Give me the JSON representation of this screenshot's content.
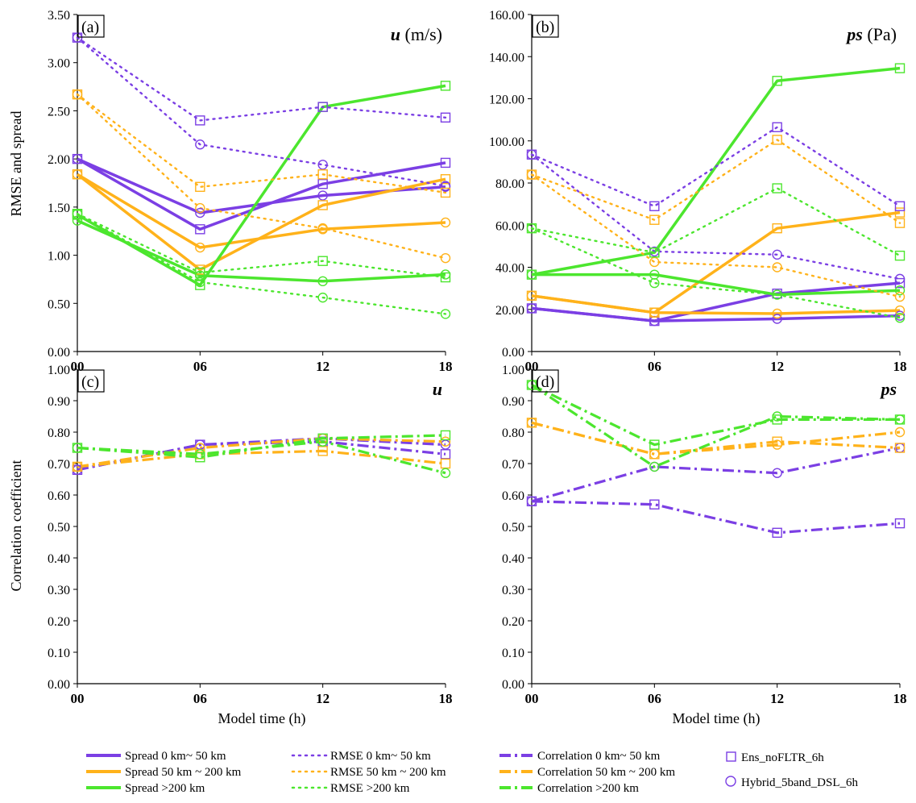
{
  "colors": {
    "purple": "#7B3FE4",
    "orange": "#FFB21A",
    "green": "#4CE62E",
    "axis": "#000000"
  },
  "axis_labels": {
    "top_ylabel": "RMSE and spread",
    "bottom_ylabel": "Correlation coefficient",
    "xlabel": "Model time (h)"
  },
  "x_ticks": [
    "00",
    "06",
    "12",
    "18"
  ],
  "legend": {
    "spread": [
      "Spread 0 km~ 50 km",
      "Spread 50 km ~ 200 km",
      "Spread >200 km"
    ],
    "rmse": [
      "RMSE 0 km~ 50 km",
      "RMSE 50 km ~ 200 km",
      "RMSE >200 km"
    ],
    "corr": [
      "Correlation 0 km~ 50 km",
      "Correlation 50 km ~ 200 km",
      "Correlation >200 km"
    ],
    "markers": [
      "Ens_noFLTR_6h",
      "Hybrid_5band_DSL_6h"
    ]
  },
  "chart_data": [
    {
      "type": "line",
      "panel": "(a)",
      "variable": "u",
      "unit": "(m/s)",
      "x": [
        "00",
        "06",
        "12",
        "18"
      ],
      "ylim": [
        0,
        3.5
      ],
      "yticks": [
        "0.00",
        "0.50",
        "1.00",
        "1.50",
        "2.00",
        "2.50",
        "3.00",
        "3.50"
      ],
      "series": [
        {
          "name": "Spread 0 km~ 50 km",
          "experiment": "Ens_noFLTR_6h",
          "values": [
            2.0,
            1.27,
            1.74,
            1.96
          ]
        },
        {
          "name": "Spread 0 km~ 50 km",
          "experiment": "Hybrid_5band_DSL_6h",
          "values": [
            2.0,
            1.44,
            1.62,
            1.71
          ]
        },
        {
          "name": "Spread 50 km ~ 200 km",
          "experiment": "Ens_noFLTR_6h",
          "values": [
            1.84,
            0.85,
            1.52,
            1.79
          ]
        },
        {
          "name": "Spread 50 km ~ 200 km",
          "experiment": "Hybrid_5band_DSL_6h",
          "values": [
            1.84,
            1.08,
            1.27,
            1.34
          ]
        },
        {
          "name": "Spread >200 km",
          "experiment": "Ens_noFLTR_6h",
          "values": [
            1.42,
            0.69,
            2.54,
            2.76
          ]
        },
        {
          "name": "Spread >200 km",
          "experiment": "Hybrid_5band_DSL_6h",
          "values": [
            1.36,
            0.79,
            0.73,
            0.8
          ]
        },
        {
          "name": "RMSE 0 km~ 50 km",
          "experiment": "Ens_noFLTR_6h",
          "values": [
            3.26,
            2.4,
            2.54,
            2.43
          ]
        },
        {
          "name": "RMSE 0 km~ 50 km",
          "experiment": "Hybrid_5band_DSL_6h",
          "values": [
            3.26,
            2.15,
            1.94,
            1.72
          ]
        },
        {
          "name": "RMSE 50 km ~ 200 km",
          "experiment": "Ens_noFLTR_6h",
          "values": [
            2.67,
            1.71,
            1.84,
            1.65
          ]
        },
        {
          "name": "RMSE 50 km ~ 200 km",
          "experiment": "Hybrid_5band_DSL_6h",
          "values": [
            2.67,
            1.49,
            1.28,
            0.97
          ]
        },
        {
          "name": "RMSE >200 km",
          "experiment": "Ens_noFLTR_6h",
          "values": [
            1.43,
            0.82,
            0.94,
            0.77
          ]
        },
        {
          "name": "RMSE >200 km",
          "experiment": "Hybrid_5band_DSL_6h",
          "values": [
            1.43,
            0.72,
            0.56,
            0.39
          ]
        }
      ]
    },
    {
      "type": "line",
      "panel": "(b)",
      "variable": "ps",
      "unit": "(Pa)",
      "x": [
        "00",
        "06",
        "12",
        "18"
      ],
      "ylim": [
        0,
        160
      ],
      "yticks": [
        "0.00",
        "20.00",
        "40.00",
        "60.00",
        "80.00",
        "100.00",
        "120.00",
        "140.00",
        "160.00"
      ],
      "series": [
        {
          "name": "Spread 0 km~ 50 km",
          "experiment": "Ens_noFLTR_6h",
          "values": [
            20.5,
            14.5,
            27.5,
            32.5
          ]
        },
        {
          "name": "Spread 0 km~ 50 km",
          "experiment": "Hybrid_5band_DSL_6h",
          "values": [
            20.5,
            14.5,
            15.5,
            17
          ]
        },
        {
          "name": "Spread 50 km ~ 200 km",
          "experiment": "Ens_noFLTR_6h",
          "values": [
            26.5,
            18.5,
            58.5,
            66
          ]
        },
        {
          "name": "Spread 50 km ~ 200 km",
          "experiment": "Hybrid_5band_DSL_6h",
          "values": [
            26.5,
            18.5,
            18,
            19.5
          ]
        },
        {
          "name": "Spread >200 km",
          "experiment": "Ens_noFLTR_6h",
          "values": [
            36.5,
            47,
            128.5,
            134.5
          ]
        },
        {
          "name": "Spread >200 km",
          "experiment": "Hybrid_5band_DSL_6h",
          "values": [
            36.5,
            36.5,
            27,
            29
          ]
        },
        {
          "name": "RMSE 0 km~ 50 km",
          "experiment": "Ens_noFLTR_6h",
          "values": [
            93.5,
            69,
            106.5,
            69
          ]
        },
        {
          "name": "RMSE 0 km~ 50 km",
          "experiment": "Hybrid_5band_DSL_6h",
          "values": [
            93.5,
            47.5,
            46,
            34.5
          ]
        },
        {
          "name": "RMSE 50 km ~ 200 km",
          "experiment": "Ens_noFLTR_6h",
          "values": [
            84,
            62.5,
            100.5,
            61
          ]
        },
        {
          "name": "RMSE 50 km ~ 200 km",
          "experiment": "Hybrid_5band_DSL_6h",
          "values": [
            84,
            42.5,
            40,
            26
          ]
        },
        {
          "name": "RMSE >200 km",
          "experiment": "Ens_noFLTR_6h",
          "values": [
            58.5,
            47,
            77.5,
            45.5
          ]
        },
        {
          "name": "RMSE >200 km",
          "experiment": "Hybrid_5band_DSL_6h",
          "values": [
            58.5,
            32.5,
            27,
            16
          ]
        }
      ]
    },
    {
      "type": "line",
      "panel": "(c)",
      "variable": "u",
      "unit": "",
      "x": [
        "00",
        "06",
        "12",
        "18"
      ],
      "ylim": [
        0,
        1.0
      ],
      "yticks": [
        "0.00",
        "0.10",
        "0.20",
        "0.30",
        "0.40",
        "0.50",
        "0.60",
        "0.70",
        "0.80",
        "0.90",
        "1.00"
      ],
      "series": [
        {
          "name": "Correlation 0 km~ 50 km",
          "experiment": "Ens_noFLTR_6h",
          "values": [
            0.68,
            0.76,
            0.77,
            0.73
          ]
        },
        {
          "name": "Correlation 0 km~ 50 km",
          "experiment": "Hybrid_5band_DSL_6h",
          "values": [
            0.68,
            0.76,
            0.78,
            0.76
          ]
        },
        {
          "name": "Correlation 50 km ~ 200 km",
          "experiment": "Ens_noFLTR_6h",
          "values": [
            0.69,
            0.73,
            0.74,
            0.7
          ]
        },
        {
          "name": "Correlation 50 km ~ 200 km",
          "experiment": "Hybrid_5band_DSL_6h",
          "values": [
            0.69,
            0.75,
            0.78,
            0.77
          ]
        },
        {
          "name": "Correlation >200 km",
          "experiment": "Ens_noFLTR_6h",
          "values": [
            0.75,
            0.72,
            0.78,
            0.79
          ]
        },
        {
          "name": "Correlation >200 km",
          "experiment": "Hybrid_5band_DSL_6h",
          "values": [
            0.75,
            0.73,
            0.77,
            0.67
          ]
        }
      ]
    },
    {
      "type": "line",
      "panel": "(d)",
      "variable": "ps",
      "unit": "",
      "x": [
        "00",
        "06",
        "12",
        "18"
      ],
      "ylim": [
        0,
        1.0
      ],
      "yticks": [
        "0.00",
        "0.10",
        "0.20",
        "0.30",
        "0.40",
        "0.50",
        "0.60",
        "0.70",
        "0.80",
        "0.90",
        "1.00"
      ],
      "series": [
        {
          "name": "Correlation 0 km~ 50 km",
          "experiment": "Ens_noFLTR_6h",
          "values": [
            0.58,
            0.57,
            0.48,
            0.51
          ]
        },
        {
          "name": "Correlation 0 km~ 50 km",
          "experiment": "Hybrid_5band_DSL_6h",
          "values": [
            0.58,
            0.69,
            0.67,
            0.75
          ]
        },
        {
          "name": "Correlation 50 km ~ 200 km",
          "experiment": "Ens_noFLTR_6h",
          "values": [
            0.83,
            0.73,
            0.77,
            0.75
          ]
        },
        {
          "name": "Correlation 50 km ~ 200 km",
          "experiment": "Hybrid_5band_DSL_6h",
          "values": [
            0.83,
            0.73,
            0.76,
            0.8
          ]
        },
        {
          "name": "Correlation >200 km",
          "experiment": "Ens_noFLTR_6h",
          "values": [
            0.95,
            0.76,
            0.84,
            0.84
          ]
        },
        {
          "name": "Correlation >200 km",
          "experiment": "Hybrid_5band_DSL_6h",
          "values": [
            0.95,
            0.69,
            0.85,
            0.84
          ]
        }
      ]
    }
  ]
}
